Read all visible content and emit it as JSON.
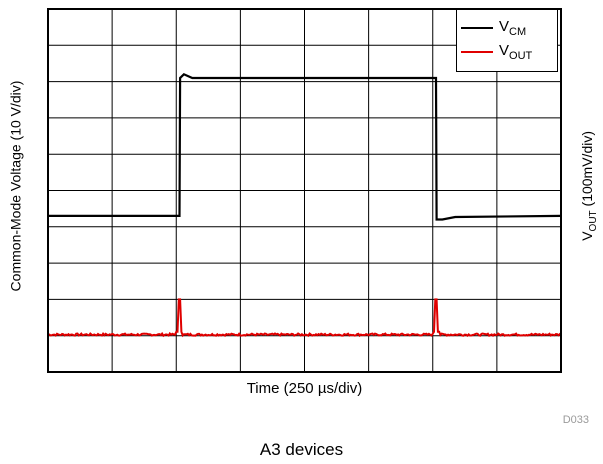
{
  "figure_id": "D033",
  "caption": "A3 devices",
  "chart_data": {
    "type": "line",
    "xlabel": "Time (250 µs/div)",
    "ylabel_left": "Common-Mode Voltage (10 V/div)",
    "ylabel_right": {
      "main": "V",
      "sub": "OUT",
      "rest": " (100mV/div)"
    },
    "grid": true,
    "divisions": {
      "x": 8,
      "y": 10
    },
    "x_range_div": [
      0,
      8
    ],
    "y_range_div": [
      0,
      10
    ],
    "legend_position": "top-right",
    "series": [
      {
        "name": "V",
        "name_sub": "CM",
        "color": "#000000",
        "points": [
          [
            0,
            4.3
          ],
          [
            2.05,
            4.3
          ],
          [
            2.06,
            8.1
          ],
          [
            2.12,
            8.2
          ],
          [
            2.25,
            8.1
          ],
          [
            6.05,
            8.1
          ],
          [
            6.06,
            4.2
          ],
          [
            6.15,
            4.2
          ],
          [
            6.35,
            4.27
          ],
          [
            8,
            4.3
          ]
        ]
      },
      {
        "name": "V",
        "name_sub": "OUT",
        "color": "#e00000",
        "baseline": 1.03,
        "spikes": [
          {
            "x": 2.05,
            "peak": 2.0
          },
          {
            "x": 6.05,
            "peak": 2.0
          }
        ]
      }
    ]
  }
}
